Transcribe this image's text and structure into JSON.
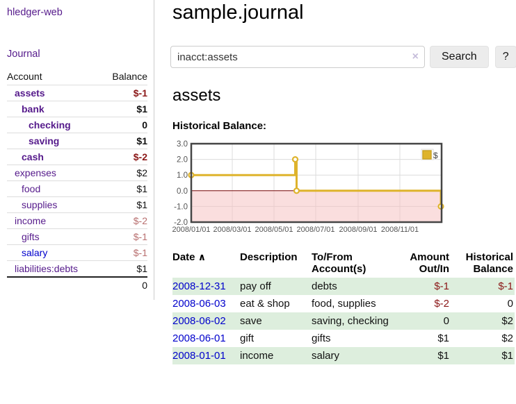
{
  "colors": {
    "link_visited_purple": "#551a8b",
    "link_blue": "#0000cc",
    "negative_strong": "#8b1717",
    "negative_soft": "#b86f6f",
    "row_shade_green": "#ddeedd",
    "chart_line_gold": "#deb32b",
    "chart_negative_region": "#f5bebe",
    "chart_zero_line": "#7a0b0b"
  },
  "app": {
    "brand": "hledger-web",
    "nav_journal": "Journal"
  },
  "sidebar": {
    "col_account": "Account",
    "col_balance": "Balance",
    "accounts": [
      {
        "name": "assets",
        "depth": 0,
        "balance": "$-1",
        "bold": true,
        "neg": "strong",
        "link": "purple"
      },
      {
        "name": "bank",
        "depth": 1,
        "balance": "$1",
        "bold": true,
        "neg": "none",
        "link": "purple"
      },
      {
        "name": "checking",
        "depth": 2,
        "balance": "0",
        "bold": true,
        "neg": "none",
        "link": "purple"
      },
      {
        "name": "saving",
        "depth": 2,
        "balance": "$1",
        "bold": true,
        "neg": "none",
        "link": "purple"
      },
      {
        "name": "cash",
        "depth": 1,
        "balance": "$-2",
        "bold": true,
        "neg": "strong",
        "link": "purple"
      },
      {
        "name": "expenses",
        "depth": 0,
        "balance": "$2",
        "bold": false,
        "neg": "none",
        "link": "purple"
      },
      {
        "name": "food",
        "depth": 1,
        "balance": "$1",
        "bold": false,
        "neg": "none",
        "link": "purple"
      },
      {
        "name": "supplies",
        "depth": 1,
        "balance": "$1",
        "bold": false,
        "neg": "none",
        "link": "purple"
      },
      {
        "name": "income",
        "depth": 0,
        "balance": "$-2",
        "bold": false,
        "neg": "soft",
        "link": "purple"
      },
      {
        "name": "gifts",
        "depth": 1,
        "balance": "$-1",
        "bold": false,
        "neg": "soft",
        "link": "purple"
      },
      {
        "name": "salary",
        "depth": 1,
        "balance": "$-1",
        "bold": false,
        "neg": "soft",
        "link": "blue"
      },
      {
        "name": "liabilities:debts",
        "depth": 0,
        "balance": "$1",
        "bold": false,
        "neg": "none",
        "link": "purple"
      }
    ],
    "total": "0"
  },
  "header": {
    "title": "sample.journal"
  },
  "search": {
    "value": "inacct:assets",
    "clear_icon": "×",
    "button_label": "Search",
    "help_label": "?"
  },
  "account_page": {
    "heading": "assets",
    "chart_label": "Historical Balance:"
  },
  "chart_data": {
    "type": "line",
    "step": true,
    "title": "Historical Balance:",
    "legend": [
      {
        "label": "$",
        "color": "#deb32b"
      }
    ],
    "legend_position": "top-right",
    "grid": true,
    "xlim": [
      "2008-01-01",
      "2009-01-01"
    ],
    "ylim": [
      -2.0,
      3.0
    ],
    "yticks": [
      "3.0",
      "2.0",
      "1.0",
      "0.0",
      "-1.0",
      "-2.0"
    ],
    "ytick_values": [
      3,
      2,
      1,
      0,
      -1,
      -2
    ],
    "xticks": [
      "2008/01/01",
      "2008/03/01",
      "2008/05/01",
      "2008/07/01",
      "2008/09/01",
      "2008/11/01"
    ],
    "xtick_dates": [
      "2008-01-01",
      "2008-03-01",
      "2008-05-01",
      "2008-07-01",
      "2008-09-01",
      "2008-11-01"
    ],
    "series": [
      {
        "name": "$",
        "points": [
          [
            "2008-01-01",
            1
          ],
          [
            "2008-06-01",
            2
          ],
          [
            "2008-06-03",
            0
          ],
          [
            "2008-12-31",
            -1
          ]
        ]
      }
    ],
    "negative_region": {
      "from": 0,
      "to": -2
    }
  },
  "register": {
    "col_date": "Date",
    "sort_indicator": "∧",
    "col_description": "Description",
    "col_accounts": "To/From Account(s)",
    "col_amount": "Amount Out/In",
    "col_balance": "Historical Balance",
    "rows": [
      {
        "date": "2008-12-31",
        "description": "pay off",
        "accounts": "debts",
        "amount": "$-1",
        "amount_neg": true,
        "balance": "$-1",
        "balance_neg": true,
        "shaded": true
      },
      {
        "date": "2008-06-03",
        "description": "eat & shop",
        "accounts": "food, supplies",
        "amount": "$-2",
        "amount_neg": true,
        "balance": "0",
        "balance_neg": false,
        "shaded": false
      },
      {
        "date": "2008-06-02",
        "description": "save",
        "accounts": "saving, checking",
        "amount": "0",
        "amount_neg": false,
        "balance": "$2",
        "balance_neg": false,
        "shaded": true
      },
      {
        "date": "2008-06-01",
        "description": "gift",
        "accounts": "gifts",
        "amount": "$1",
        "amount_neg": false,
        "balance": "$2",
        "balance_neg": false,
        "shaded": false
      },
      {
        "date": "2008-01-01",
        "description": "income",
        "accounts": "salary",
        "amount": "$1",
        "amount_neg": false,
        "balance": "$1",
        "balance_neg": false,
        "shaded": true
      }
    ]
  }
}
